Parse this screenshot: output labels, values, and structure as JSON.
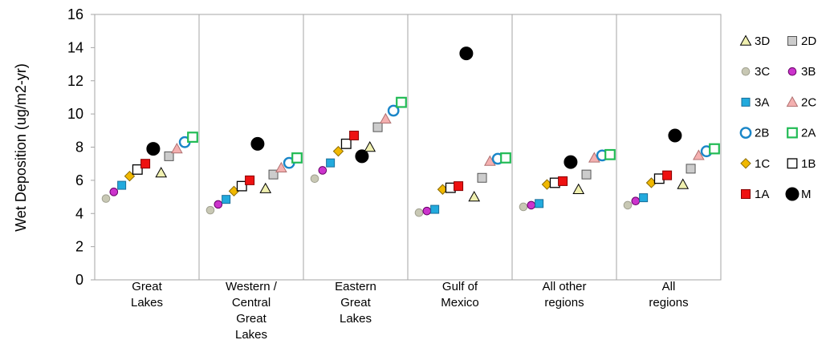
{
  "chart_data": {
    "type": "scatter",
    "title": "",
    "ylabel": "Wet Deposition (ug/m2-yr)",
    "xlabel": "",
    "ylim": [
      0,
      16
    ],
    "yticks": [
      0,
      2,
      4,
      6,
      8,
      10,
      12,
      14,
      16
    ],
    "categories": [
      [
        "Great",
        "Lakes"
      ],
      [
        "Western /",
        "Central",
        "Great",
        "Lakes"
      ],
      [
        "Eastern",
        "Great",
        "Lakes"
      ],
      [
        "Gulf of",
        "Mexico"
      ],
      [
        "All other",
        "regions"
      ],
      [
        "All",
        "regions"
      ]
    ],
    "grid": "vertical separators between categories",
    "legend_position": "right",
    "series": [
      {
        "name": "3C",
        "marker": "circle-small",
        "fill": "#c8c8b4",
        "stroke": "#a0a090",
        "values": [
          4.9,
          4.2,
          6.1,
          4.05,
          4.4,
          4.5
        ]
      },
      {
        "name": "3B",
        "marker": "circle-small",
        "fill": "#cc33cc",
        "stroke": "#660066",
        "values": [
          5.3,
          4.55,
          6.6,
          4.15,
          4.5,
          4.75
        ]
      },
      {
        "name": "3A",
        "marker": "square-small",
        "fill": "#22aadd",
        "stroke": "#1a6e99",
        "values": [
          5.7,
          4.85,
          7.05,
          4.25,
          4.6,
          4.95
        ]
      },
      {
        "name": "1C",
        "marker": "diamond",
        "fill": "#f0b800",
        "stroke": "#8a6a00",
        "values": [
          6.25,
          5.35,
          7.75,
          5.45,
          5.75,
          5.85
        ]
      },
      {
        "name": "1B",
        "marker": "square-open",
        "fill": "#ffffff",
        "stroke": "#000000",
        "values": [
          6.65,
          5.65,
          8.2,
          5.55,
          5.85,
          6.1
        ]
      },
      {
        "name": "1A",
        "marker": "square",
        "fill": "#ee1111",
        "stroke": "#880000",
        "values": [
          7.0,
          6.0,
          8.7,
          5.65,
          5.95,
          6.3
        ]
      },
      {
        "name": "M",
        "marker": "circle-large",
        "fill": "#000000",
        "stroke": "#000000",
        "values": [
          7.9,
          8.2,
          7.45,
          13.65,
          7.1,
          8.7
        ]
      },
      {
        "name": "3D",
        "marker": "triangle",
        "fill": "#f0f0b0",
        "stroke": "#000000",
        "values": [
          6.45,
          5.5,
          8.0,
          5.0,
          5.45,
          5.75
        ]
      },
      {
        "name": "2D",
        "marker": "square",
        "fill": "#cccccc",
        "stroke": "#555555",
        "values": [
          7.45,
          6.35,
          9.2,
          6.15,
          6.35,
          6.7
        ]
      },
      {
        "name": "2C",
        "marker": "triangle",
        "fill": "#f4b0b0",
        "stroke": "#b07070",
        "values": [
          7.9,
          6.75,
          9.7,
          7.15,
          7.35,
          7.5
        ]
      },
      {
        "name": "2B",
        "marker": "circle-open",
        "fill": "#ffffff",
        "stroke": "#1a86c8",
        "values": [
          8.3,
          7.05,
          10.2,
          7.3,
          7.5,
          7.75
        ]
      },
      {
        "name": "2A",
        "marker": "square-open",
        "fill": "#ffffff",
        "stroke": "#22bb55",
        "values": [
          8.6,
          7.35,
          10.7,
          7.35,
          7.55,
          7.9
        ]
      }
    ],
    "legend_order": [
      [
        "3D",
        "2D"
      ],
      [
        "3C",
        "3B"
      ],
      [
        "3A",
        "2C"
      ],
      [
        "2B",
        "2A"
      ],
      [
        "1C",
        "1B"
      ],
      [
        "1A",
        "M"
      ]
    ],
    "within_category_order": [
      "3C",
      "3B",
      "3A",
      "1C",
      "1B",
      "1A",
      "M",
      "3D",
      "2D",
      "2C",
      "2B",
      "2A"
    ]
  }
}
